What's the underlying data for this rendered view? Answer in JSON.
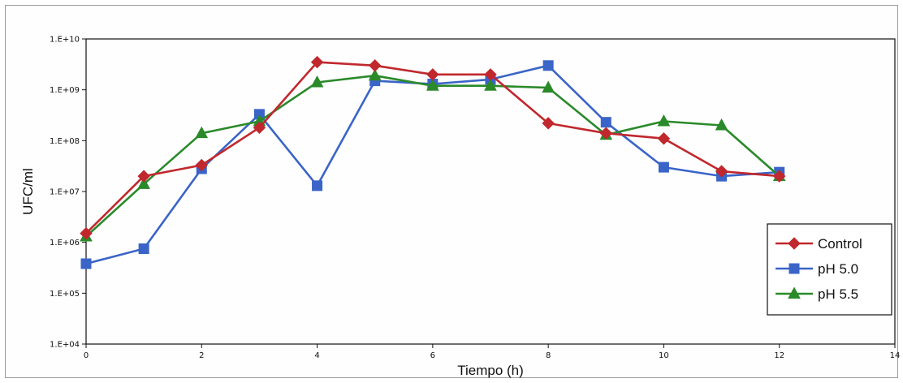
{
  "chart_data": {
    "type": "line",
    "title": "",
    "xlabel": "Tiempo (h)",
    "ylabel": "UFC/ml",
    "xlim": [
      0,
      14
    ],
    "ylim": [
      10000,
      10000000000
    ],
    "yscale": "log",
    "x_ticks": [
      0,
      2,
      4,
      6,
      8,
      10,
      12,
      14
    ],
    "x_tick_labels": [
      "0",
      "2",
      "4",
      "6",
      "8",
      "10",
      "12",
      "14"
    ],
    "y_ticks": [
      10000,
      100000,
      1000000,
      10000000,
      100000000,
      1000000000,
      10000000000
    ],
    "y_tick_labels": [
      "1.E+04",
      "1.E+05",
      "1.E+06",
      "1.E+07",
      "1.E+08",
      "1.E+09",
      "1.E+10"
    ],
    "grid": false,
    "legend_position": "right",
    "series": [
      {
        "name": "Control",
        "color": "#c0282d",
        "marker": "diamond",
        "x": [
          0,
          1,
          2,
          3,
          4,
          5,
          6,
          7,
          8,
          9,
          10,
          11,
          12
        ],
        "y": [
          1500000,
          20000000,
          33000000,
          180000000,
          3500000000,
          3000000000,
          2000000000,
          2000000000,
          220000000,
          140000000,
          110000000,
          25000000,
          20000000
        ]
      },
      {
        "name": "pH 5.0",
        "color": "#3a64c8",
        "marker": "square",
        "x": [
          0,
          1,
          2,
          3,
          4,
          5,
          6,
          7,
          8,
          9,
          10,
          11,
          12
        ],
        "y": [
          380000,
          750000,
          28000000,
          330000000,
          13000000,
          1500000000,
          1300000000,
          1600000000,
          3000000000,
          230000000,
          30000000,
          20000000,
          24000000
        ]
      },
      {
        "name": "pH 5.5",
        "color": "#2a8a2a",
        "marker": "triangle",
        "x": [
          0,
          1,
          2,
          3,
          4,
          5,
          6,
          7,
          8,
          9,
          10,
          11,
          12
        ],
        "y": [
          1300000,
          14000000,
          140000000,
          240000000,
          1400000000,
          1900000000,
          1200000000,
          1200000000,
          1100000000,
          130000000,
          240000000,
          200000000,
          20000000
        ]
      }
    ]
  }
}
